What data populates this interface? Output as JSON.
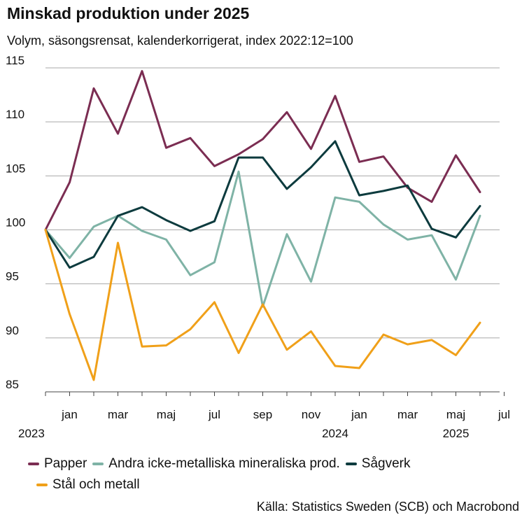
{
  "title": "Minskad produktion under 2025",
  "subtitle": "Volym, säsongsrensat, kalenderkorrigerat, index 2022:12=100",
  "source": "Källa: Statistics Sweden (SCB) och Macrobond",
  "chart_data": {
    "type": "line",
    "title": "Minskad produktion under 2025",
    "subtitle": "Volym, säsongsrensat, kalenderkorrigerat, index 2022:12=100",
    "xlabel": "",
    "ylabel": "",
    "ylim": [
      85,
      115
    ],
    "yticks": [
      85,
      90,
      95,
      100,
      105,
      110,
      115
    ],
    "grid": true,
    "x_start": "2022-12",
    "x_ticks": [
      {
        "index": 1,
        "label": "jan"
      },
      {
        "index": 3,
        "label": "mar"
      },
      {
        "index": 5,
        "label": "maj"
      },
      {
        "index": 7,
        "label": "jul"
      },
      {
        "index": 9,
        "label": "sep"
      },
      {
        "index": 11,
        "label": "nov"
      },
      {
        "index": 13,
        "label": "jan"
      },
      {
        "index": 15,
        "label": "mar"
      },
      {
        "index": 17,
        "label": "maj"
      },
      {
        "index": 19,
        "label": "jul"
      }
    ],
    "year_labels": [
      {
        "index": 0,
        "label": "2023"
      },
      {
        "index": 12,
        "label": "2024"
      },
      {
        "index": 17,
        "label": "2025"
      }
    ],
    "series": [
      {
        "name": "Papper",
        "color": "#7b2d52",
        "values": [
          100,
          104.4,
          113.1,
          108.9,
          114.7,
          107.6,
          108.5,
          105.9,
          107.0,
          108.4,
          110.9,
          107.5,
          112.4,
          106.3,
          106.8,
          103.9,
          102.6,
          106.9,
          103.5
        ]
      },
      {
        "name": "Andra icke-metalliska mineraliska prod.",
        "color": "#7fb3a6",
        "values": [
          100,
          97.4,
          100.3,
          101.3,
          99.9,
          99.1,
          95.8,
          97.0,
          105.4,
          92.9,
          99.6,
          95.2,
          103.0,
          102.6,
          100.5,
          99.1,
          99.5,
          95.4,
          101.3
        ]
      },
      {
        "name": "Sågverk",
        "color": "#0d3b3e",
        "values": [
          100,
          96.5,
          97.5,
          101.3,
          102.1,
          100.9,
          99.9,
          100.8,
          106.7,
          106.7,
          103.8,
          105.8,
          108.2,
          103.2,
          103.6,
          104.1,
          100.1,
          99.3,
          102.2
        ]
      },
      {
        "name": "Stål och metall",
        "color": "#f0a019",
        "values": [
          100,
          92.2,
          86.1,
          98.8,
          89.2,
          89.3,
          90.8,
          93.3,
          88.6,
          93.1,
          88.9,
          90.6,
          87.4,
          87.2,
          90.3,
          89.4,
          89.8,
          88.4,
          91.4
        ]
      }
    ]
  }
}
